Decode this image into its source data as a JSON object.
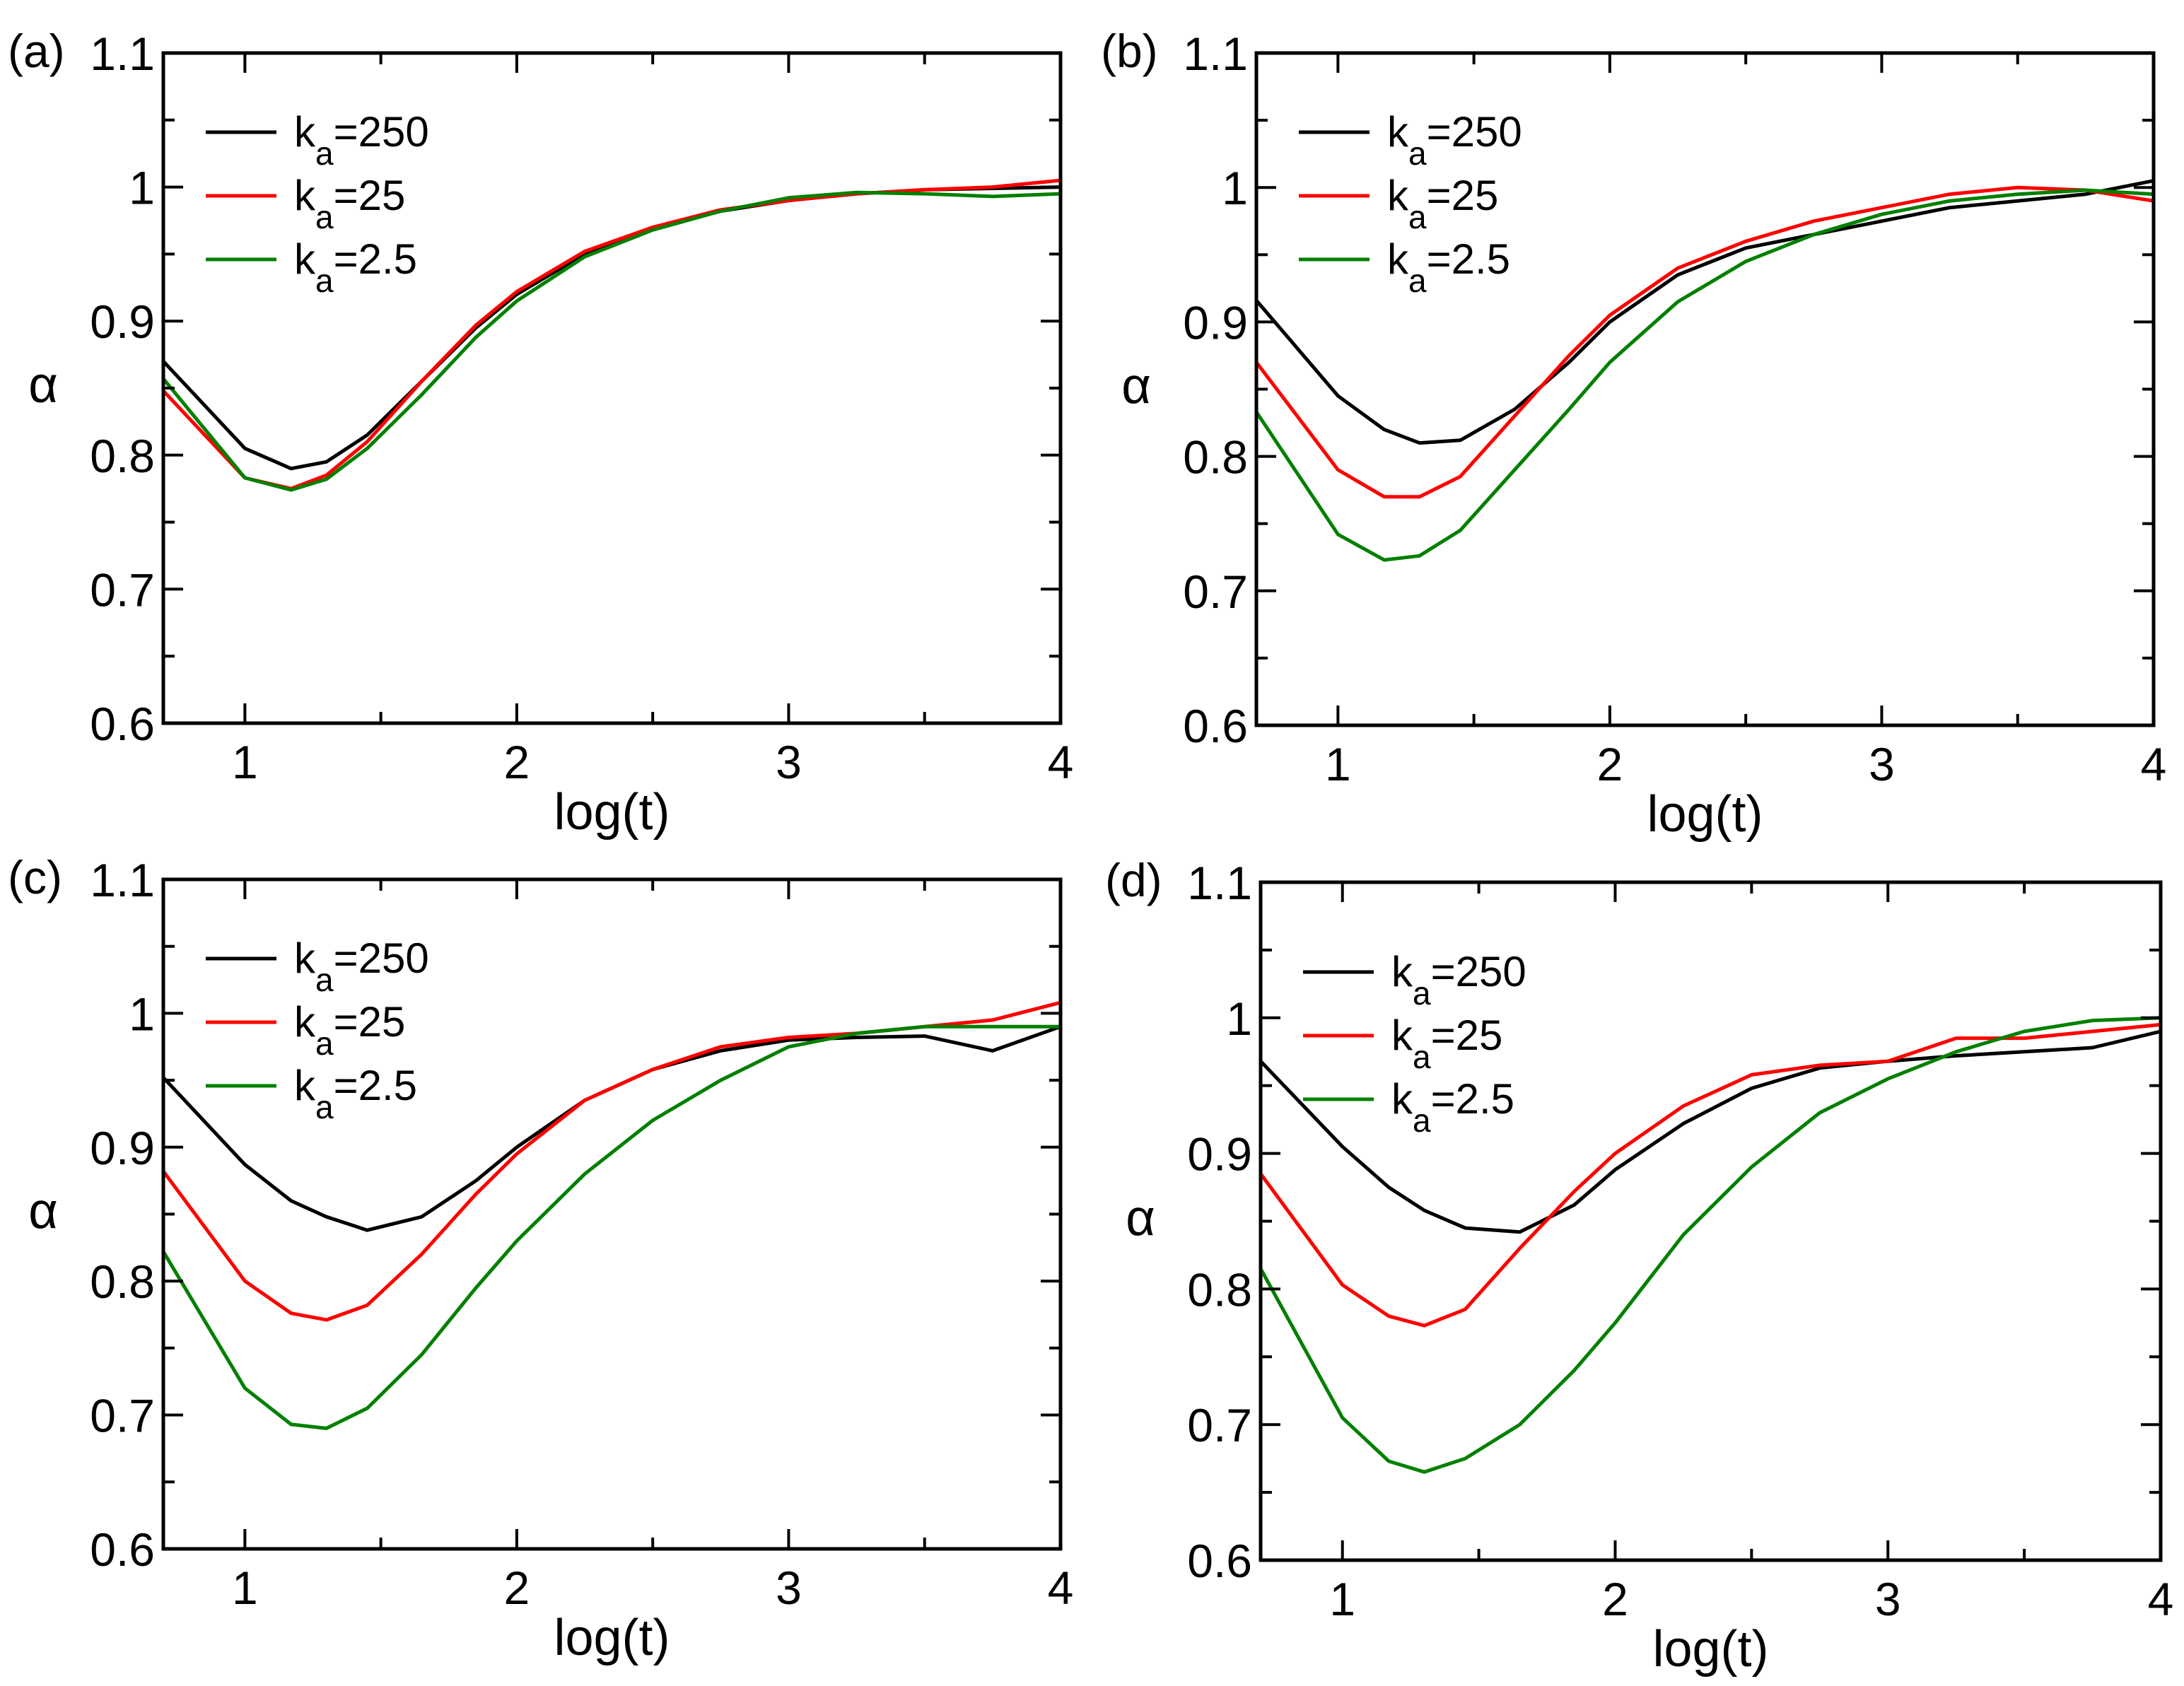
{
  "chart_data": [
    {
      "type": "line",
      "panel_label": "(a)",
      "xlabel": "log(t)",
      "ylabel": "α",
      "xlim": [
        0.7,
        4
      ],
      "ylim": [
        0.6,
        1.1
      ],
      "xticks": [
        "1",
        "2",
        "3",
        "4"
      ],
      "yticks": [
        "0.6",
        "0.7",
        "0.8",
        "0.9",
        "1",
        "1.1"
      ],
      "legend_position": "top-left",
      "x": [
        0.7,
        1.0,
        1.17,
        1.3,
        1.45,
        1.65,
        1.85,
        2.0,
        2.25,
        2.5,
        2.75,
        3.0,
        3.25,
        3.5,
        3.75,
        4.0
      ],
      "series": [
        {
          "name": "k_a=250",
          "label_base": "k",
          "label_sub": "a",
          "label_rest": "=250",
          "color": "#000000",
          "values": [
            0.87,
            0.805,
            0.79,
            0.795,
            0.815,
            0.855,
            0.895,
            0.92,
            0.95,
            0.97,
            0.982,
            0.99,
            0.995,
            0.998,
            0.999,
            1.0
          ]
        },
        {
          "name": "k_a=25",
          "label_base": "k",
          "label_sub": "a",
          "label_rest": "=25",
          "color": "#ff0000",
          "values": [
            0.848,
            0.783,
            0.775,
            0.785,
            0.81,
            0.855,
            0.897,
            0.922,
            0.952,
            0.97,
            0.983,
            0.99,
            0.995,
            0.998,
            1.0,
            1.005
          ]
        },
        {
          "name": "k_a=2.5",
          "label_base": "k",
          "label_sub": "a",
          "label_rest": "=2.5",
          "color": "#008000",
          "values": [
            0.857,
            0.783,
            0.774,
            0.782,
            0.805,
            0.845,
            0.888,
            0.915,
            0.948,
            0.968,
            0.982,
            0.992,
            0.996,
            0.995,
            0.993,
            0.995
          ]
        }
      ]
    },
    {
      "type": "line",
      "panel_label": "(b)",
      "xlabel": "log(t)",
      "ylabel": "α",
      "xlim": [
        0.7,
        4
      ],
      "ylim": [
        0.6,
        1.1
      ],
      "xticks": [
        "1",
        "2",
        "3",
        "4"
      ],
      "yticks": [
        "0.6",
        "0.7",
        "0.8",
        "0.9",
        "1",
        "1.1"
      ],
      "legend_position": "top-left",
      "x": [
        0.7,
        1.0,
        1.17,
        1.3,
        1.45,
        1.65,
        1.85,
        2.0,
        2.25,
        2.5,
        2.75,
        3.0,
        3.25,
        3.5,
        3.75,
        4.0
      ],
      "series": [
        {
          "name": "k_a=250",
          "label_base": "k",
          "label_sub": "a",
          "label_rest": "=250",
          "color": "#000000",
          "values": [
            0.916,
            0.845,
            0.82,
            0.81,
            0.812,
            0.835,
            0.87,
            0.9,
            0.935,
            0.955,
            0.965,
            0.975,
            0.985,
            0.99,
            0.995,
            1.005
          ]
        },
        {
          "name": "k_a=25",
          "label_base": "k",
          "label_sub": "a",
          "label_rest": "=25",
          "color": "#ff0000",
          "values": [
            0.87,
            0.79,
            0.77,
            0.77,
            0.785,
            0.83,
            0.875,
            0.905,
            0.94,
            0.96,
            0.975,
            0.985,
            0.995,
            1.0,
            0.998,
            0.99
          ]
        },
        {
          "name": "k_a=2.5",
          "label_base": "k",
          "label_sub": "a",
          "label_rest": "=2.5",
          "color": "#008000",
          "values": [
            0.833,
            0.742,
            0.723,
            0.726,
            0.745,
            0.79,
            0.835,
            0.87,
            0.915,
            0.945,
            0.965,
            0.98,
            0.99,
            0.995,
            0.998,
            0.995
          ]
        }
      ]
    },
    {
      "type": "line",
      "panel_label": "(c)",
      "xlabel": "log(t)",
      "ylabel": "α",
      "xlim": [
        0.7,
        4
      ],
      "ylim": [
        0.6,
        1.1
      ],
      "xticks": [
        "1",
        "2",
        "3",
        "4"
      ],
      "yticks": [
        "0.6",
        "0.7",
        "0.8",
        "0.9",
        "1",
        "1.1"
      ],
      "legend_position": "top-left",
      "x": [
        0.7,
        1.0,
        1.17,
        1.3,
        1.45,
        1.65,
        1.85,
        2.0,
        2.25,
        2.5,
        2.75,
        3.0,
        3.25,
        3.5,
        3.75,
        4.0
      ],
      "series": [
        {
          "name": "k_a=250",
          "label_base": "k",
          "label_sub": "a",
          "label_rest": "=250",
          "color": "#000000",
          "values": [
            0.952,
            0.887,
            0.86,
            0.848,
            0.838,
            0.848,
            0.875,
            0.9,
            0.935,
            0.958,
            0.972,
            0.98,
            0.982,
            0.983,
            0.972,
            0.99
          ]
        },
        {
          "name": "k_a=25",
          "label_base": "k",
          "label_sub": "a",
          "label_rest": "=25",
          "color": "#ff0000",
          "values": [
            0.882,
            0.8,
            0.776,
            0.771,
            0.782,
            0.82,
            0.865,
            0.895,
            0.935,
            0.958,
            0.975,
            0.982,
            0.985,
            0.99,
            0.995,
            1.008
          ]
        },
        {
          "name": "k_a=2.5",
          "label_base": "k",
          "label_sub": "a",
          "label_rest": "=2.5",
          "color": "#008000",
          "values": [
            0.822,
            0.72,
            0.693,
            0.69,
            0.705,
            0.745,
            0.795,
            0.83,
            0.88,
            0.92,
            0.95,
            0.975,
            0.985,
            0.99,
            0.99,
            0.99
          ]
        }
      ]
    },
    {
      "type": "line",
      "panel_label": "(d)",
      "xlabel": "log(t)",
      "ylabel": "α",
      "xlim": [
        0.7,
        4
      ],
      "ylim": [
        0.6,
        1.1
      ],
      "xticks": [
        "1",
        "2",
        "3",
        "4"
      ],
      "yticks": [
        "0.6",
        "0.7",
        "0.8",
        "0.9",
        "1",
        "1.1"
      ],
      "legend_position": "top-left",
      "x": [
        0.7,
        1.0,
        1.17,
        1.3,
        1.45,
        1.65,
        1.85,
        2.0,
        2.25,
        2.5,
        2.75,
        3.0,
        3.25,
        3.5,
        3.75,
        4.0
      ],
      "series": [
        {
          "name": "k_a=250",
          "label_base": "k",
          "label_sub": "a",
          "label_rest": "=250",
          "color": "#000000",
          "values": [
            0.968,
            0.905,
            0.875,
            0.858,
            0.845,
            0.842,
            0.862,
            0.888,
            0.922,
            0.948,
            0.963,
            0.968,
            0.972,
            0.975,
            0.978,
            0.99
          ]
        },
        {
          "name": "k_a=25",
          "label_base": "k",
          "label_sub": "a",
          "label_rest": "=25",
          "color": "#ff0000",
          "values": [
            0.885,
            0.803,
            0.78,
            0.773,
            0.785,
            0.83,
            0.872,
            0.9,
            0.935,
            0.958,
            0.965,
            0.968,
            0.985,
            0.985,
            0.99,
            0.995
          ]
        },
        {
          "name": "k_a=2.5",
          "label_base": "k",
          "label_sub": "a",
          "label_rest": "=2.5",
          "color": "#008000",
          "values": [
            0.815,
            0.705,
            0.673,
            0.665,
            0.675,
            0.7,
            0.74,
            0.775,
            0.84,
            0.89,
            0.93,
            0.955,
            0.975,
            0.99,
            0.998,
            1.0
          ]
        }
      ]
    }
  ]
}
